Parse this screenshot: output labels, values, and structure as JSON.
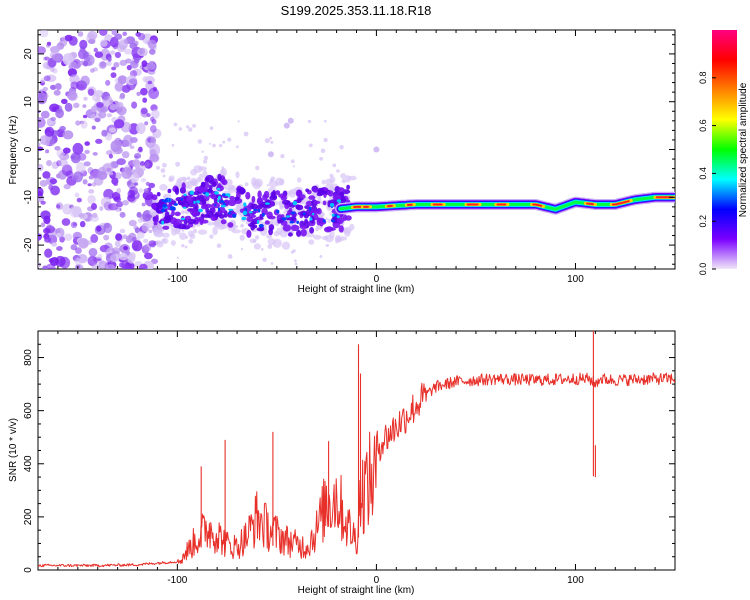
{
  "figure_title": "S199.2025.353.11.18.R18",
  "colors": {
    "line": "#e8302a",
    "scatter": "#8a3cf2",
    "axis": "#000000",
    "background": "#ffffff"
  },
  "colorbar": {
    "label": "Normalized spectral amplitude",
    "range": [
      0,
      1
    ],
    "ticks": [
      "0.0",
      "0.2",
      "0.4",
      "0.6",
      "0.8"
    ],
    "tick_values": [
      0.0,
      0.2,
      0.4,
      0.6,
      0.8
    ],
    "colormap": [
      "#f0e8f8",
      "#7a00ff",
      "#0000ff",
      "#00ffff",
      "#00ff00",
      "#ffff00",
      "#ff8000",
      "#ff0000",
      "#ff0080"
    ]
  },
  "chart_data": [
    {
      "type": "heatmap",
      "xlabel": "Height of straight line (km)",
      "ylabel": "Frequency (Hz)",
      "xlim": [
        -170,
        150
      ],
      "ylim": [
        -25,
        25
      ],
      "xticks": [
        -100,
        0,
        100
      ],
      "xtick_labels": [
        "-100",
        "0",
        "100"
      ],
      "yticks": [
        20,
        10,
        0,
        -10,
        -20
      ],
      "ytick_labels": [
        "20",
        "10",
        "0",
        "-10",
        "-20"
      ],
      "ridge": {
        "x": [
          -110,
          -100,
          -90,
          -80,
          -70,
          -60,
          -50,
          -40,
          -30,
          -20,
          -10,
          0,
          20,
          40,
          60,
          80,
          90,
          100,
          110,
          120,
          130,
          140,
          150
        ],
        "frequency": [
          -13,
          -12.5,
          -11,
          -10,
          -12,
          -14,
          -13,
          -13.5,
          -12.5,
          -12.5,
          -12,
          -12,
          -11.5,
          -11.5,
          -11.5,
          -11.5,
          -12.5,
          -11,
          -11.5,
          -11.5,
          -10.5,
          -10,
          -10
        ]
      }
    },
    {
      "type": "line",
      "xlabel": "Height of straight line (km)",
      "ylabel": "SNR (10 * v/v)",
      "xlim": [
        -170,
        150
      ],
      "ylim": [
        0,
        900
      ],
      "xticks": [
        -100,
        0,
        100
      ],
      "xtick_labels": [
        "-100",
        "0",
        "100"
      ],
      "yticks": [
        0,
        200,
        400,
        600,
        800
      ],
      "ytick_labels": [
        "0",
        "200",
        "400",
        "600",
        "800"
      ],
      "envelope_x": [
        -170,
        -140,
        -120,
        -100,
        -95,
        -90,
        -85,
        -80,
        -75,
        -70,
        -65,
        -60,
        -55,
        -50,
        -45,
        -40,
        -35,
        -30,
        -25,
        -20,
        -15,
        -10,
        -8,
        -5,
        0,
        5,
        10,
        15,
        20,
        25,
        30,
        40,
        50,
        60,
        80,
        100,
        107,
        110,
        112,
        120,
        140,
        150
      ],
      "envelope_y": [
        15,
        15,
        18,
        30,
        90,
        150,
        200,
        170,
        120,
        110,
        160,
        250,
        200,
        170,
        140,
        120,
        110,
        190,
        320,
        350,
        220,
        140,
        350,
        400,
        460,
        500,
        540,
        580,
        620,
        660,
        690,
        710,
        715,
        720,
        715,
        720,
        720,
        700,
        720,
        715,
        720,
        720
      ],
      "spikes": [
        {
          "x": -88,
          "y": 390
        },
        {
          "x": -76,
          "y": 490
        },
        {
          "x": -52,
          "y": 520
        },
        {
          "x": -24,
          "y": 485
        },
        {
          "x": -9,
          "y": 850
        },
        {
          "x": -8,
          "y": 740
        },
        {
          "x": 109,
          "y": 905
        },
        {
          "x": 110,
          "y": 470
        }
      ]
    }
  ]
}
